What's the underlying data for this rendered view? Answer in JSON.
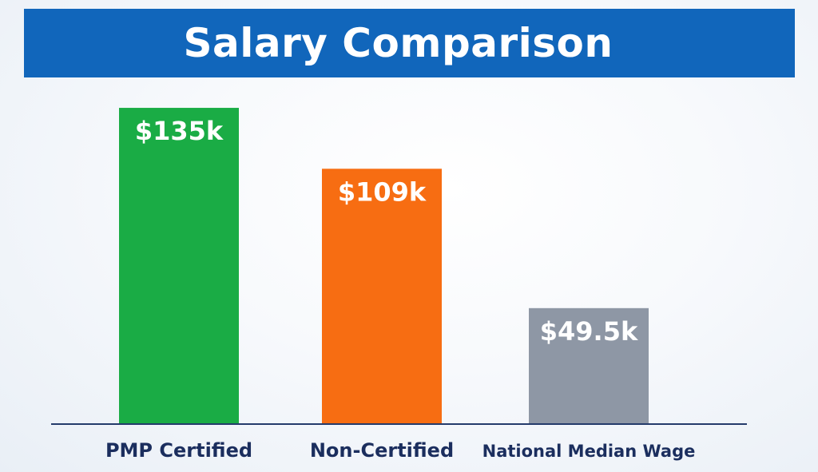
{
  "title": "Salary Comparison",
  "chart_data": {
    "type": "bar",
    "title": "Salary Comparison",
    "categories": [
      "PMP Certified",
      "Non-Certified",
      "National Median Wage"
    ],
    "values": [
      135,
      109,
      49.5
    ],
    "value_labels": [
      "$135k",
      "$109k",
      "$49.5k"
    ],
    "unit": "k USD",
    "colors": [
      "#1aac45",
      "#f76d12",
      "#8e97a5"
    ],
    "xlabel": "",
    "ylabel": "",
    "ylim": [
      0,
      150
    ],
    "grid": false,
    "legend": "none"
  }
}
